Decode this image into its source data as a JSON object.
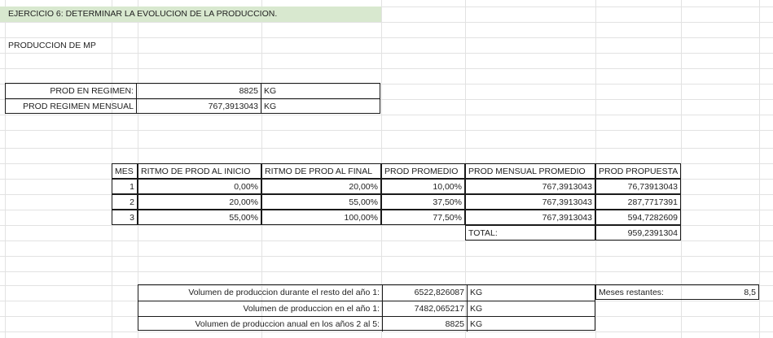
{
  "title": "EJERCICIO 6: DETERMINAR LA EVOLUCION DE LA PRODUCCION.",
  "subtitle": "PRODUCCION DE MP",
  "regimen": {
    "prod_label": "PROD EN REGIMEN:",
    "prod_value": "8825",
    "prod_unit": "KG",
    "mensual_label": "PROD REGIMEN MENSUAL",
    "mensual_value": "767,3913043",
    "mensual_unit": "KG"
  },
  "table": {
    "headers": [
      "MES",
      "RITMO DE PROD AL INICIO",
      "RITMO DE PROD AL FINAL",
      "PROD PROMEDIO",
      "PROD MENSUAL PROMEDIO",
      "PROD PROPUESTA"
    ],
    "rows": [
      [
        "1",
        "0,00%",
        "20,00%",
        "10,00%",
        "767,3913043",
        "76,73913043"
      ],
      [
        "2",
        "20,00%",
        "55,00%",
        "37,50%",
        "767,3913043",
        "287,7717391"
      ],
      [
        "3",
        "55,00%",
        "100,00%",
        "77,50%",
        "767,3913043",
        "594,7282609"
      ]
    ],
    "total_label": "TOTAL:",
    "total_value": "959,2391304"
  },
  "volumen": {
    "rows": [
      {
        "label": "Volumen de produccion durante el resto del año 1:",
        "value": "6522,826087",
        "unit": "KG"
      },
      {
        "label": "Volumen de produccion en el año 1:",
        "value": "7482,065217",
        "unit": "KG"
      },
      {
        "label": "Volumen de produccion anual en los años 2 al 5:",
        "value": "8825",
        "unit": "KG"
      }
    ],
    "meses_label": "Meses restantes:",
    "meses_value": "8,5"
  },
  "colors": {
    "title_fill": "#d8e8cf",
    "gridline": "#e2e2e2",
    "border": "#1a1a1a"
  }
}
